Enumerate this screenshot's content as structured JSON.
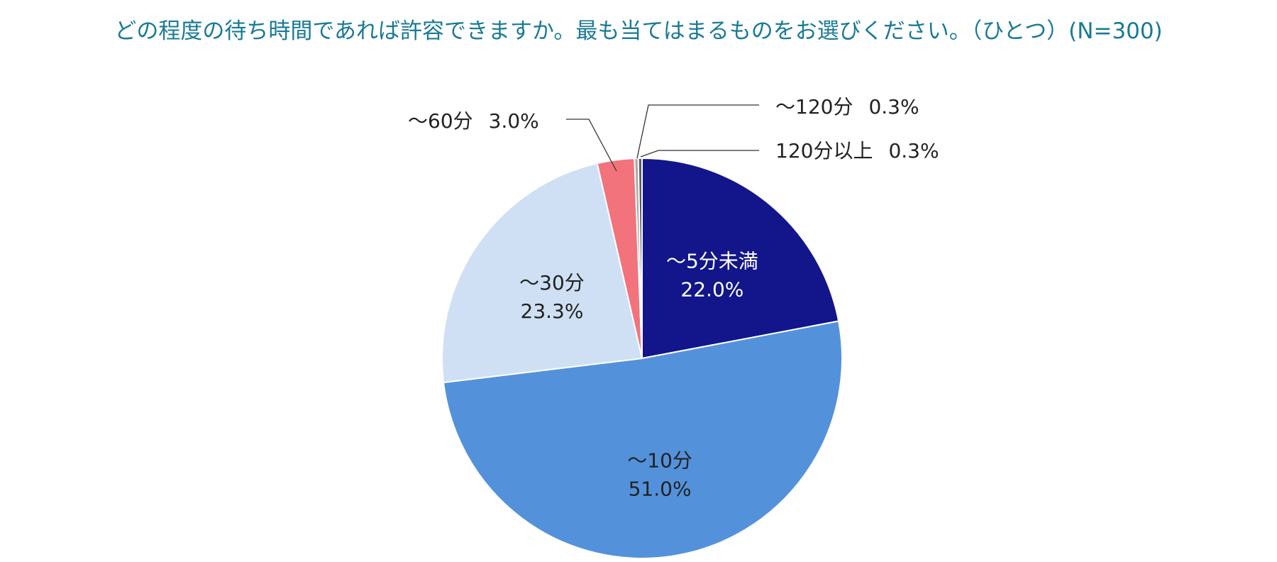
{
  "chart_data": {
    "type": "pie",
    "title": "どの程度の待ち時間であれば許容できますか。最も当てはまるものをお選びください。（ひとつ）(N=300)",
    "slices": [
      {
        "label": "～5分未満",
        "value": 22.0,
        "value_label": "22.0%",
        "color": "#12168a",
        "label_color": "#ffffff",
        "label_mode": "inside"
      },
      {
        "label": "～10分",
        "value": 51.0,
        "value_label": "51.0%",
        "color": "#5392db",
        "label_color": "#222222",
        "label_mode": "inside"
      },
      {
        "label": "～30分",
        "value": 23.3,
        "value_label": "23.3%",
        "color": "#cfe0f4",
        "label_color": "#222222",
        "label_mode": "inside"
      },
      {
        "label": "～60分",
        "value": 3.0,
        "value_label": "3.0%",
        "color": "#f2737b",
        "label_color": "#222222",
        "label_mode": "outside"
      },
      {
        "label": "～120分",
        "value": 0.3,
        "value_label": "0.3%",
        "color": "#a6a6a6",
        "label_color": "#222222",
        "label_mode": "outside"
      },
      {
        "label": "120分以上",
        "value": 0.3,
        "value_label": "0.3%",
        "color": "#5a5a5a",
        "label_color": "#222222",
        "label_mode": "outside"
      }
    ],
    "start_angle": "12 o'clock",
    "direction": "clockwise",
    "legend": "none"
  }
}
